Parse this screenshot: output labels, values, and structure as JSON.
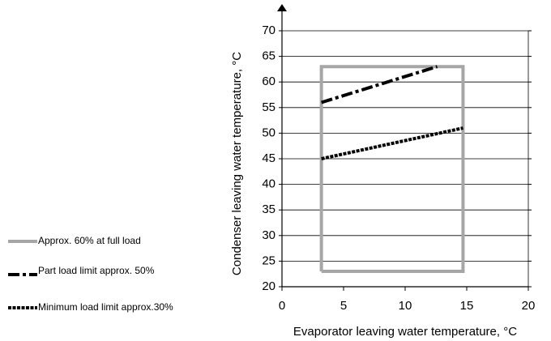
{
  "chart_data": {
    "type": "line",
    "xlabel": "Evaporator leaving water temperature, °C",
    "ylabel": "Condenser leaving water temperature, °C",
    "xlim": [
      0,
      20
    ],
    "xticks": [
      0,
      5,
      10,
      15,
      20
    ],
    "ylim": [
      20,
      70
    ],
    "yticks": [
      20,
      25,
      30,
      35,
      40,
      45,
      50,
      55,
      60,
      65,
      70
    ],
    "grid": true,
    "series": [
      {
        "name": "Approx. 60% at full load",
        "color": "#a6a6a6",
        "style": "solid",
        "x": [
          3.2,
          14.7,
          14.7,
          3.2,
          3.2
        ],
        "values": [
          23,
          23,
          63,
          63,
          23
        ]
      },
      {
        "name": "Part load limit approx. 50%",
        "color": "#000000",
        "style": "dashdot",
        "x": [
          3.2,
          12.6
        ],
        "values": [
          56,
          63
        ]
      },
      {
        "name": "Minimum load limit approx.30%",
        "color": "#000000",
        "style": "dotted",
        "x": [
          3.2,
          14.7
        ],
        "values": [
          45,
          51
        ]
      }
    ]
  }
}
